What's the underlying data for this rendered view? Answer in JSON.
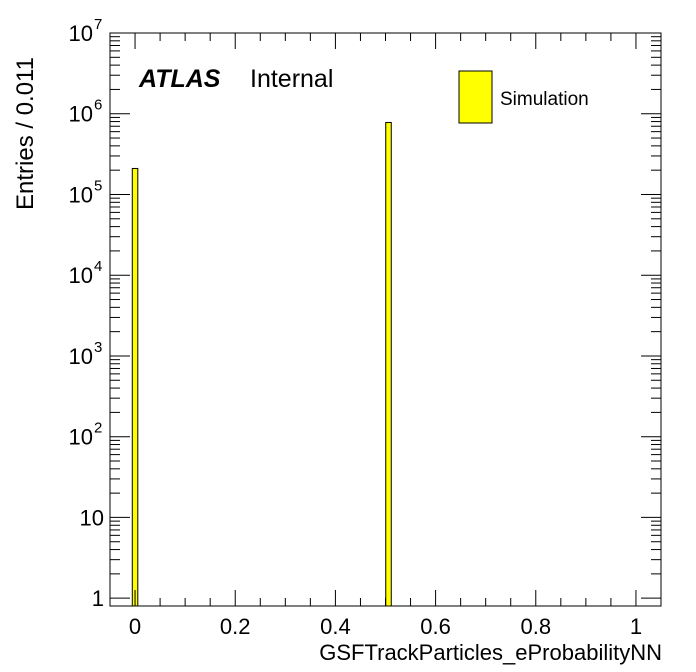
{
  "chart_data": {
    "type": "bar",
    "style": "histogram",
    "xlabel": "GSFTrackParticles_eProbabilityNN",
    "ylabel": "Entries / 0.011",
    "xlim": [
      -0.05,
      1.05
    ],
    "ylim": [
      0.8,
      10000000
    ],
    "y_scale": "log",
    "bin_width": 0.011,
    "grid": false,
    "legend_position": "top-right",
    "x_tick_labels": [
      "0",
      "0.2",
      "0.4",
      "0.6",
      "0.8",
      "1"
    ],
    "y_tick_labels": [
      {
        "base": "1",
        "exp": ""
      },
      {
        "base": "10",
        "exp": ""
      },
      {
        "base": "10",
        "exp": "2"
      },
      {
        "base": "10",
        "exp": "3"
      },
      {
        "base": "10",
        "exp": "4"
      },
      {
        "base": "10",
        "exp": "5"
      },
      {
        "base": "10",
        "exp": "6"
      },
      {
        "base": "10",
        "exp": "7"
      }
    ],
    "series": [
      {
        "name": "Simulation",
        "color": "#ffff00",
        "edge_color": "#000000",
        "bins": [
          {
            "x_low": -0.0055,
            "x_high": 0.0055,
            "value": 210000
          },
          {
            "x_low": 0.5005,
            "x_high": 0.5115,
            "value": 780000
          }
        ]
      }
    ],
    "annotations": {
      "experiment": "ATLAS",
      "status": "Internal"
    }
  }
}
